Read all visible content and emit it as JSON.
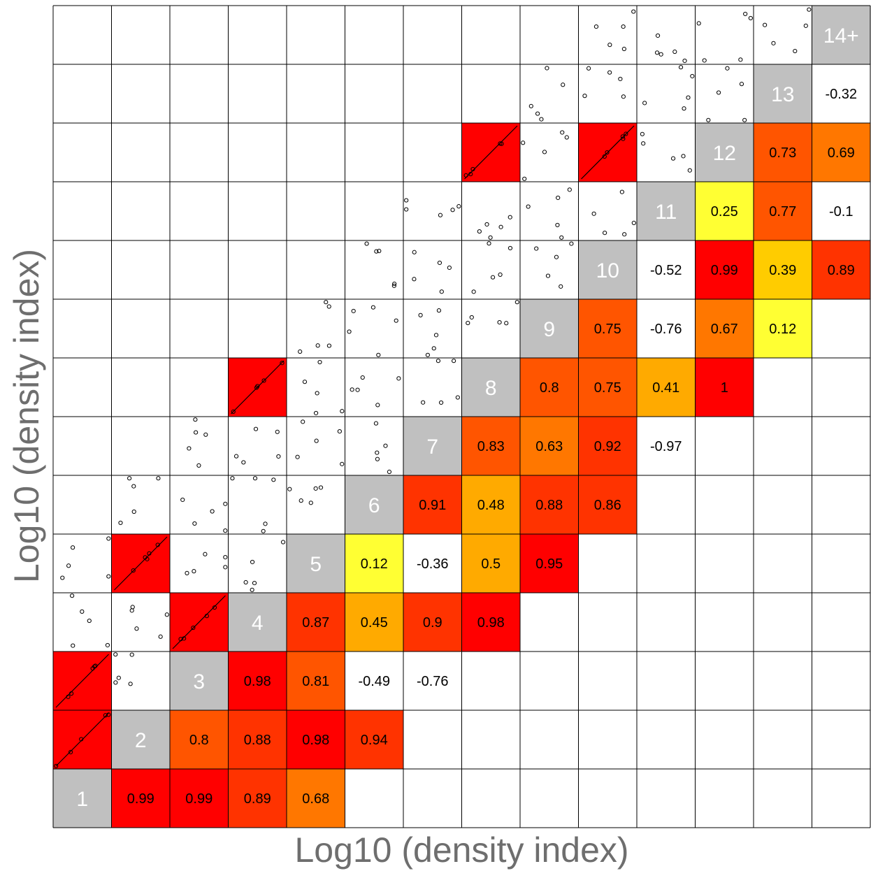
{
  "chart_data": {
    "type": "heatmap",
    "xlabel": "Log10 (density index)",
    "ylabel": "Log10 (density index)",
    "classes": [
      "1",
      "2",
      "3",
      "4",
      "5",
      "6",
      "7",
      "8",
      "9",
      "10",
      "11",
      "12",
      "13",
      "14+"
    ],
    "colors": {
      "diagonal": "#c0c0c0",
      "strong": "#ff0000",
      "high": "#ff3300",
      "mid_high": "#ff5500",
      "mid": "#ff7700",
      "mid_low": "#ffaa00",
      "low_mid": "#ffcc00",
      "low": "#ffff33",
      "negative": "#ffffff"
    },
    "correlations": [
      {
        "a": 1,
        "b": 2,
        "r": "0.99"
      },
      {
        "a": 1,
        "b": 3,
        "r": "0.99"
      },
      {
        "a": 1,
        "b": 4,
        "r": "0.89"
      },
      {
        "a": 1,
        "b": 5,
        "r": "0.68"
      },
      {
        "a": 2,
        "b": 3,
        "r": "0.8"
      },
      {
        "a": 2,
        "b": 4,
        "r": "0.88"
      },
      {
        "a": 2,
        "b": 5,
        "r": "0.98"
      },
      {
        "a": 2,
        "b": 6,
        "r": "0.94"
      },
      {
        "a": 3,
        "b": 4,
        "r": "0.98"
      },
      {
        "a": 3,
        "b": 5,
        "r": "0.81"
      },
      {
        "a": 3,
        "b": 6,
        "r": "-0.49"
      },
      {
        "a": 3,
        "b": 7,
        "r": "-0.76"
      },
      {
        "a": 4,
        "b": 5,
        "r": "0.87"
      },
      {
        "a": 4,
        "b": 6,
        "r": "0.45"
      },
      {
        "a": 4,
        "b": 7,
        "r": "0.9"
      },
      {
        "a": 4,
        "b": 8,
        "r": "0.98"
      },
      {
        "a": 5,
        "b": 6,
        "r": "0.12"
      },
      {
        "a": 5,
        "b": 7,
        "r": "-0.36"
      },
      {
        "a": 5,
        "b": 8,
        "r": "0.5"
      },
      {
        "a": 5,
        "b": 9,
        "r": "0.95"
      },
      {
        "a": 6,
        "b": 7,
        "r": "0.91"
      },
      {
        "a": 6,
        "b": 8,
        "r": "0.48"
      },
      {
        "a": 6,
        "b": 9,
        "r": "0.88"
      },
      {
        "a": 6,
        "b": 10,
        "r": "0.86"
      },
      {
        "a": 7,
        "b": 8,
        "r": "0.83"
      },
      {
        "a": 7,
        "b": 9,
        "r": "0.63"
      },
      {
        "a": 7,
        "b": 10,
        "r": "0.92"
      },
      {
        "a": 7,
        "b": 11,
        "r": "-0.97"
      },
      {
        "a": 8,
        "b": 9,
        "r": "0.8"
      },
      {
        "a": 8,
        "b": 10,
        "r": "0.75"
      },
      {
        "a": 8,
        "b": 11,
        "r": "0.41"
      },
      {
        "a": 8,
        "b": 12,
        "r": "1"
      },
      {
        "a": 9,
        "b": 10,
        "r": "0.75"
      },
      {
        "a": 9,
        "b": 11,
        "r": "-0.76"
      },
      {
        "a": 9,
        "b": 12,
        "r": "0.67"
      },
      {
        "a": 9,
        "b": 13,
        "r": "0.12"
      },
      {
        "a": 10,
        "b": 11,
        "r": "-0.52"
      },
      {
        "a": 10,
        "b": 12,
        "r": "0.99"
      },
      {
        "a": 10,
        "b": 13,
        "r": "0.39"
      },
      {
        "a": 10,
        "b": 14,
        "r": "0.89"
      },
      {
        "a": 11,
        "b": 12,
        "r": "0.25"
      },
      {
        "a": 11,
        "b": 13,
        "r": "0.77"
      },
      {
        "a": 11,
        "b": 14,
        "r": "-0.1"
      },
      {
        "a": 12,
        "b": 13,
        "r": "0.73"
      },
      {
        "a": 12,
        "b": 14,
        "r": "0.69"
      },
      {
        "a": 13,
        "b": 14,
        "r": "-0.32"
      }
    ]
  }
}
